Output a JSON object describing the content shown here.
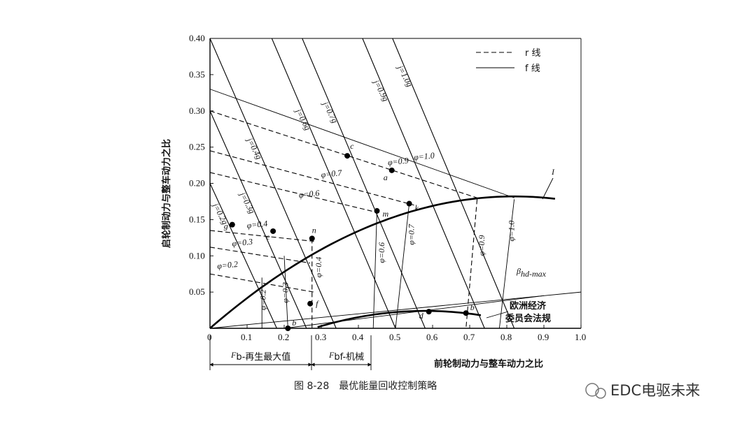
{
  "figure": {
    "caption": "图 8-28　最优能量回收控制策略",
    "watermark": "EDC电驱未来"
  },
  "axes": {
    "xlabel": "前轮制动力与整车动力之比",
    "ylabel": "启轮制动力与整车动力之比",
    "x_ticks": [
      "0",
      "0.1",
      "0.2",
      "0.3",
      "0.4",
      "0.5",
      "0.6",
      "0.7",
      "0.8",
      "0.9",
      "1.0"
    ],
    "y_ticks": [
      "0.05",
      "0.10",
      "0.15",
      "0.20",
      "0.25",
      "0.30",
      "0.35",
      "0.40"
    ],
    "xlim": [
      0,
      1.0
    ],
    "ylim": [
      0,
      0.4
    ]
  },
  "legend": {
    "r_label": "r 线",
    "f_label": "f 线"
  },
  "f_lines": [
    {
      "label": "j=0.2g",
      "j": 0.2
    },
    {
      "label": "j=0.3g",
      "j": 0.3
    },
    {
      "label": "j=0.4g",
      "j": 0.4
    },
    {
      "label": "j=0.6g",
      "j": 0.6
    },
    {
      "label": "j=0.7g",
      "j": 0.7
    },
    {
      "label": "j=0.9g",
      "j": 0.9
    },
    {
      "label": "j=1.0g",
      "j": 1.0
    }
  ],
  "r_lines": [
    {
      "label": "φ=0.2",
      "phi": 0.2
    },
    {
      "label": "φ=0.3",
      "phi": 0.3
    },
    {
      "label": "φ=0.4",
      "phi": 0.4
    },
    {
      "label": "φ=0.6",
      "phi": 0.6
    },
    {
      "label": "φ=0.7",
      "phi": 0.7
    },
    {
      "label": "φ=0.9",
      "phi": 0.9
    },
    {
      "label": "φ=1.0",
      "phi": 1.0
    }
  ],
  "f_phi_labels": [
    "φ=0.2",
    "φ=0.3",
    "φ=0.4",
    "φ=0.6",
    "φ=0.7",
    "φ=0.9",
    "φ=1.0"
  ],
  "points": [
    {
      "name": "g",
      "x": 0.06,
      "y": 0.143
    },
    {
      "name": "e",
      "x": 0.17,
      "y": 0.134
    },
    {
      "name": "n",
      "x": 0.275,
      "y": 0.124
    },
    {
      "name": "f",
      "x": 0.27,
      "y": 0.034
    },
    {
      "name": "b",
      "x": 0.21,
      "y": 0.0
    },
    {
      "name": "c",
      "x": 0.37,
      "y": 0.238
    },
    {
      "name": "a",
      "x": 0.49,
      "y": 0.218
    },
    {
      "name": "m",
      "x": 0.45,
      "y": 0.162
    },
    {
      "name": "k",
      "x": 0.537,
      "y": 0.172
    },
    {
      "name": "d",
      "x": 0.59,
      "y": 0.023
    },
    {
      "name": "b",
      "x": 0.69,
      "y": 0.021
    }
  ],
  "annotations": {
    "curve_I": "I",
    "beta_label": "β",
    "beta_sub": "hd-max",
    "regulation_line1": "欧洲经济",
    "regulation_line2": "委员会法规",
    "fb_regen_main": "F",
    "fb_regen_sub": "b-再生最大值",
    "fbf_main": "F",
    "fbf_sub": "bf-机械"
  }
}
